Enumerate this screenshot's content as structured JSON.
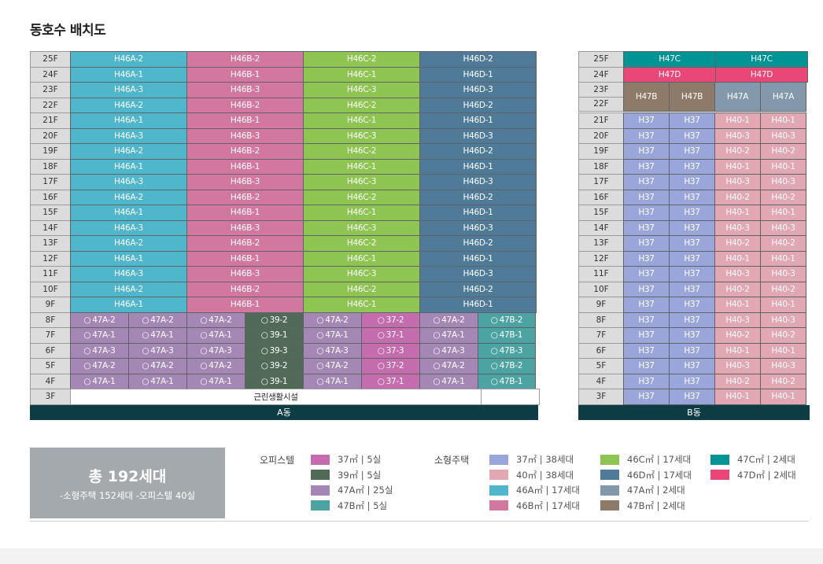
{
  "title": "동호수 배치도",
  "colors": {
    "H46A": "#4fb6cc",
    "H46B": "#d2789f",
    "H46C": "#8ec552",
    "H46D": "#4f7b98",
    "O47A": "#a487b4",
    "O39": "#516a58",
    "O37": "#c56cae",
    "O47B": "#4ca3a1",
    "H37": "#9aa6da",
    "H40": "#e1a7b2",
    "H47C": "#009494",
    "H47D": "#e94777",
    "H47A": "#8399ab",
    "H47B": "#8e7a68"
  },
  "building_a": {
    "name": "A동",
    "upper": [
      {
        "floor": "25F",
        "units": [
          [
            "H46A-2",
            "H46A"
          ],
          [
            "H46B-2",
            "H46B"
          ],
          [
            "H46C-2",
            "H46C"
          ],
          [
            "H46D-2",
            "H46D"
          ]
        ]
      },
      {
        "floor": "24F",
        "units": [
          [
            "H46A-1",
            "H46A"
          ],
          [
            "H46B-1",
            "H46B"
          ],
          [
            "H46C-1",
            "H46C"
          ],
          [
            "H46D-1",
            "H46D"
          ]
        ]
      },
      {
        "floor": "23F",
        "units": [
          [
            "H46A-3",
            "H46A"
          ],
          [
            "H46B-3",
            "H46B"
          ],
          [
            "H46C-3",
            "H46C"
          ],
          [
            "H46D-3",
            "H46D"
          ]
        ]
      },
      {
        "floor": "22F",
        "units": [
          [
            "H46A-2",
            "H46A"
          ],
          [
            "H46B-2",
            "H46B"
          ],
          [
            "H46C-2",
            "H46C"
          ],
          [
            "H46D-2",
            "H46D"
          ]
        ]
      },
      {
        "floor": "21F",
        "units": [
          [
            "H46A-1",
            "H46A"
          ],
          [
            "H46B-1",
            "H46B"
          ],
          [
            "H46C-1",
            "H46C"
          ],
          [
            "H46D-1",
            "H46D"
          ]
        ]
      },
      {
        "floor": "20F",
        "units": [
          [
            "H46A-3",
            "H46A"
          ],
          [
            "H46B-3",
            "H46B"
          ],
          [
            "H46C-3",
            "H46C"
          ],
          [
            "H46D-3",
            "H46D"
          ]
        ]
      },
      {
        "floor": "19F",
        "units": [
          [
            "H46A-2",
            "H46A"
          ],
          [
            "H46B-2",
            "H46B"
          ],
          [
            "H46C-2",
            "H46C"
          ],
          [
            "H46D-2",
            "H46D"
          ]
        ]
      },
      {
        "floor": "18F",
        "units": [
          [
            "H46A-1",
            "H46A"
          ],
          [
            "H46B-1",
            "H46B"
          ],
          [
            "H46C-1",
            "H46C"
          ],
          [
            "H46D-1",
            "H46D"
          ]
        ]
      },
      {
        "floor": "17F",
        "units": [
          [
            "H46A-3",
            "H46A"
          ],
          [
            "H46B-3",
            "H46B"
          ],
          [
            "H46C-3",
            "H46C"
          ],
          [
            "H46D-3",
            "H46D"
          ]
        ]
      },
      {
        "floor": "16F",
        "units": [
          [
            "H46A-2",
            "H46A"
          ],
          [
            "H46B-2",
            "H46B"
          ],
          [
            "H46C-2",
            "H46C"
          ],
          [
            "H46D-2",
            "H46D"
          ]
        ]
      },
      {
        "floor": "15F",
        "units": [
          [
            "H46A-1",
            "H46A"
          ],
          [
            "H46B-1",
            "H46B"
          ],
          [
            "H46C-1",
            "H46C"
          ],
          [
            "H46D-1",
            "H46D"
          ]
        ]
      },
      {
        "floor": "14F",
        "units": [
          [
            "H46A-3",
            "H46A"
          ],
          [
            "H46B-3",
            "H46B"
          ],
          [
            "H46C-3",
            "H46C"
          ],
          [
            "H46D-3",
            "H46D"
          ]
        ]
      },
      {
        "floor": "13F",
        "units": [
          [
            "H46A-2",
            "H46A"
          ],
          [
            "H46B-2",
            "H46B"
          ],
          [
            "H46C-2",
            "H46C"
          ],
          [
            "H46D-2",
            "H46D"
          ]
        ]
      },
      {
        "floor": "12F",
        "units": [
          [
            "H46A-1",
            "H46A"
          ],
          [
            "H46B-1",
            "H46B"
          ],
          [
            "H46C-1",
            "H46C"
          ],
          [
            "H46D-1",
            "H46D"
          ]
        ]
      },
      {
        "floor": "11F",
        "units": [
          [
            "H46A-3",
            "H46A"
          ],
          [
            "H46B-3",
            "H46B"
          ],
          [
            "H46C-3",
            "H46C"
          ],
          [
            "H46D-3",
            "H46D"
          ]
        ]
      },
      {
        "floor": "10F",
        "units": [
          [
            "H46A-2",
            "H46A"
          ],
          [
            "H46B-2",
            "H46B"
          ],
          [
            "H46C-2",
            "H46C"
          ],
          [
            "H46D-2",
            "H46D"
          ]
        ]
      },
      {
        "floor": "9F",
        "units": [
          [
            "H46A-1",
            "H46A"
          ],
          [
            "H46B-1",
            "H46B"
          ],
          [
            "H46C-1",
            "H46C"
          ],
          [
            "H46D-1",
            "H46D"
          ]
        ]
      }
    ],
    "lower": [
      {
        "floor": "8F",
        "units": [
          [
            "O47A-2",
            "O47A"
          ],
          [
            "O47A-2",
            "O47A"
          ],
          [
            "O47A-2",
            "O47A"
          ],
          [
            "O39-2",
            "O39"
          ],
          [
            "O47A-2",
            "O47A"
          ],
          [
            "O37-2",
            "O37"
          ],
          [
            "O47A-2",
            "O47A"
          ],
          [
            "O47B-2",
            "O47B"
          ]
        ]
      },
      {
        "floor": "7F",
        "units": [
          [
            "O47A-1",
            "O47A"
          ],
          [
            "O47A-1",
            "O47A"
          ],
          [
            "O47A-1",
            "O47A"
          ],
          [
            "O39-1",
            "O39"
          ],
          [
            "O47A-1",
            "O47A"
          ],
          [
            "O37-1",
            "O37"
          ],
          [
            "O47A-1",
            "O47A"
          ],
          [
            "O47B-1",
            "O47B"
          ]
        ]
      },
      {
        "floor": "6F",
        "units": [
          [
            "O47A-3",
            "O47A"
          ],
          [
            "O47A-3",
            "O47A"
          ],
          [
            "O47A-3",
            "O47A"
          ],
          [
            "O39-3",
            "O39"
          ],
          [
            "O47A-3",
            "O47A"
          ],
          [
            "O37-3",
            "O37"
          ],
          [
            "O47A-3",
            "O47A"
          ],
          [
            "O47B-3",
            "O47B"
          ]
        ]
      },
      {
        "floor": "5F",
        "units": [
          [
            "O47A-2",
            "O47A"
          ],
          [
            "O47A-2",
            "O47A"
          ],
          [
            "O47A-2",
            "O47A"
          ],
          [
            "O39-2",
            "O39"
          ],
          [
            "O47A-2",
            "O47A"
          ],
          [
            "O37-2",
            "O37"
          ],
          [
            "O47A-2",
            "O47A"
          ],
          [
            "O47B-2",
            "O47B"
          ]
        ]
      },
      {
        "floor": "4F",
        "units": [
          [
            "O47A-1",
            "O47A"
          ],
          [
            "O47A-1",
            "O47A"
          ],
          [
            "O47A-1",
            "O47A"
          ],
          [
            "O39-1",
            "O39"
          ],
          [
            "O47A-1",
            "O47A"
          ],
          [
            "O37-1",
            "O37"
          ],
          [
            "O47A-1",
            "O47A"
          ],
          [
            "O47B-1",
            "O47B"
          ]
        ]
      }
    ],
    "floor3": {
      "floor": "3F",
      "label": "근린생활시설"
    }
  },
  "building_b": {
    "name": "B동",
    "top": [
      {
        "floor": "25F",
        "units": [
          [
            "H47C",
            "H47C"
          ],
          [
            "H47C",
            "H47C"
          ]
        ]
      },
      {
        "floor": "24F",
        "units": [
          [
            "H47D",
            "H47D"
          ],
          [
            "H47D",
            "H47D"
          ]
        ]
      }
    ],
    "merged": {
      "floors": [
        "23F",
        "22F"
      ],
      "units": [
        [
          "H47B",
          "H47B"
        ],
        [
          "H47B",
          "H47B"
        ],
        [
          "H47A",
          "H47A"
        ],
        [
          "H47A",
          "H47A"
        ]
      ]
    },
    "rows": [
      {
        "floor": "21F",
        "units": [
          "H37",
          "H37",
          "H40-1",
          "H40-1"
        ]
      },
      {
        "floor": "20F",
        "units": [
          "H37",
          "H37",
          "H40-3",
          "H40-3"
        ]
      },
      {
        "floor": "19F",
        "units": [
          "H37",
          "H37",
          "H40-2",
          "H40-2"
        ]
      },
      {
        "floor": "18F",
        "units": [
          "H37",
          "H37",
          "H40-1",
          "H40-1"
        ]
      },
      {
        "floor": "17F",
        "units": [
          "H37",
          "H37",
          "H40-3",
          "H40-3"
        ]
      },
      {
        "floor": "16F",
        "units": [
          "H37",
          "H37",
          "H40-2",
          "H40-2"
        ]
      },
      {
        "floor": "15F",
        "units": [
          "H37",
          "H37",
          "H40-1",
          "H40-1"
        ]
      },
      {
        "floor": "14F",
        "units": [
          "H37",
          "H37",
          "H40-3",
          "H40-3"
        ]
      },
      {
        "floor": "13F",
        "units": [
          "H37",
          "H37",
          "H40-2",
          "H40-2"
        ]
      },
      {
        "floor": "12F",
        "units": [
          "H37",
          "H37",
          "H40-1",
          "H40-1"
        ]
      },
      {
        "floor": "11F",
        "units": [
          "H37",
          "H37",
          "H40-3",
          "H40-3"
        ]
      },
      {
        "floor": "10F",
        "units": [
          "H37",
          "H37",
          "H40-2",
          "H40-2"
        ]
      },
      {
        "floor": "9F",
        "units": [
          "H37",
          "H37",
          "H40-1",
          "H40-1"
        ]
      },
      {
        "floor": "8F",
        "units": [
          "H37",
          "H37",
          "H40-3",
          "H40-3"
        ]
      },
      {
        "floor": "7F",
        "units": [
          "H37",
          "H37",
          "H40-2",
          "H40-2"
        ]
      },
      {
        "floor": "6F",
        "units": [
          "H37",
          "H37",
          "H40-1",
          "H40-1"
        ]
      },
      {
        "floor": "5F",
        "units": [
          "H37",
          "H37",
          "H40-3",
          "H40-3"
        ]
      },
      {
        "floor": "4F",
        "units": [
          "H37",
          "H37",
          "H40-2",
          "H40-2"
        ]
      },
      {
        "floor": "3F",
        "units": [
          "H37",
          "H37",
          "H40-1",
          "H40-1"
        ]
      }
    ]
  },
  "summary": {
    "total": "총 192세대",
    "detail": "-소형주택 152세대 -오피스텔 40실"
  },
  "legend": {
    "officetel_label": "오피스텔",
    "housing_label": "소형주택",
    "officetel": [
      {
        "text": "37㎡ | 5실",
        "color": "#c56cae"
      },
      {
        "text": "39㎡ | 5실",
        "color": "#516a58"
      },
      {
        "text": "47A㎡ | 25실",
        "color": "#a487b4"
      },
      {
        "text": "47B㎡ | 5실",
        "color": "#4ca3a1"
      }
    ],
    "housing_col1": [
      {
        "text": "37㎡ | 38세대",
        "color": "#9aa6da"
      },
      {
        "text": "40㎡ | 38세대",
        "color": "#e1a7b2"
      },
      {
        "text": "46A㎡ | 17세대",
        "color": "#4fb6cc"
      },
      {
        "text": "46B㎡ | 17세대",
        "color": "#d2789f"
      }
    ],
    "housing_col2": [
      {
        "text": "46C㎡ | 17세대",
        "color": "#8ec552"
      },
      {
        "text": "46D㎡ | 17세대",
        "color": "#4f7b98"
      },
      {
        "text": "47A㎡ | 2세대",
        "color": "#8399ab"
      },
      {
        "text": "47B㎡ | 2세대",
        "color": "#8e7a68"
      }
    ],
    "housing_col3": [
      {
        "text": "47C㎡ | 2세대",
        "color": "#009494"
      },
      {
        "text": "47D㎡ | 2세대",
        "color": "#e94777"
      }
    ]
  }
}
